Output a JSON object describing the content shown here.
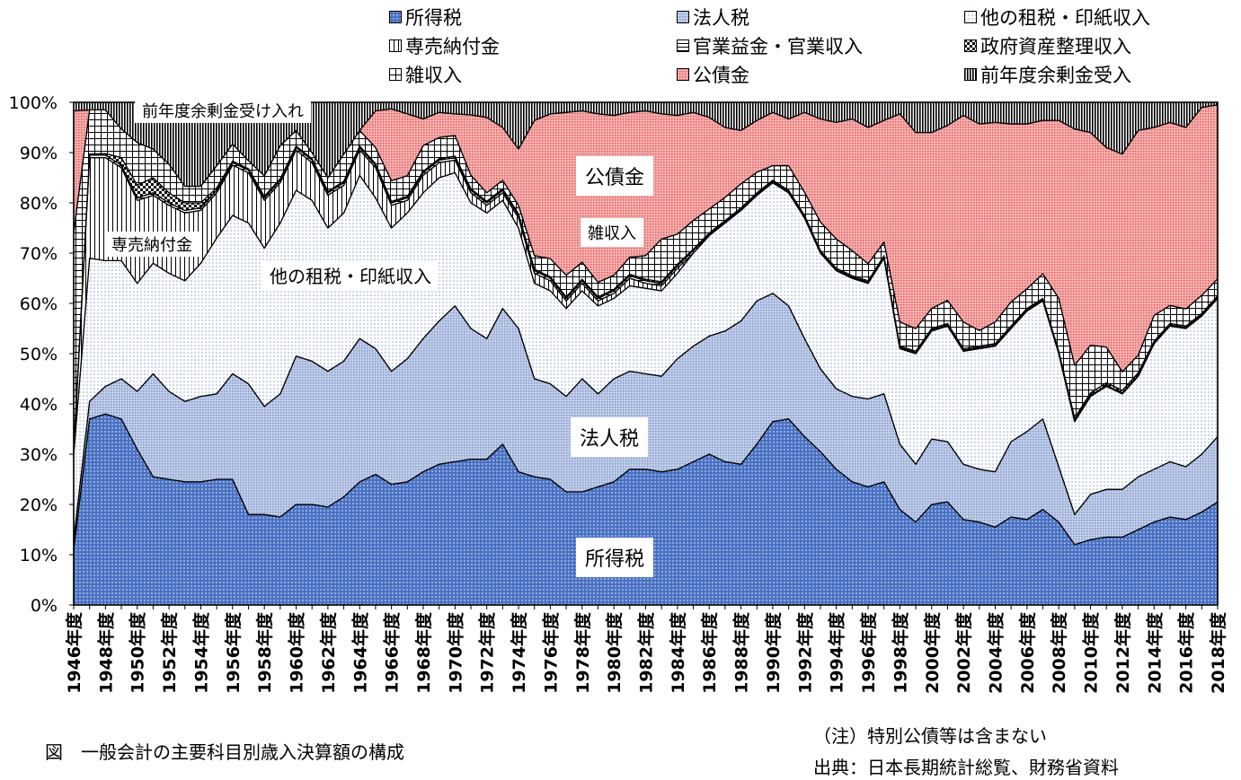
{
  "chart_data": {
    "type": "area",
    "stacked": "percent",
    "title": "図　一般会計の主要科目別歳入決算額の構成",
    "note": "（注）特別公債等は含まない",
    "source": "出典：日本長期統計総覧、財務省資料",
    "ylim": [
      0,
      100
    ],
    "y_tick_labels": [
      "0%",
      "10%",
      "20%",
      "30%",
      "40%",
      "50%",
      "60%",
      "70%",
      "80%",
      "90%",
      "100%"
    ],
    "x_start_year": 1946,
    "x_end_year": 2018,
    "x_tick_labels": [
      "1946年度",
      "1948年度",
      "1950年度",
      "1952年度",
      "1954年度",
      "1956年度",
      "1958年度",
      "1960年度",
      "1962年度",
      "1964年度",
      "1966年度",
      "1968年度",
      "1970年度",
      "1972年度",
      "1974年度",
      "1976年度",
      "1978年度",
      "1980年度",
      "1982年度",
      "1984年度",
      "1986年度",
      "1988年度",
      "1990年度",
      "1992年度",
      "1994年度",
      "1996年度",
      "1998年度",
      "2000年度",
      "2002年度",
      "2004年度",
      "2006年度",
      "2008年度",
      "2010年度",
      "2012年度",
      "2014年度",
      "2016年度",
      "2018年度"
    ],
    "legend_placement": "top",
    "series": [
      {
        "key": "income",
        "name": "所得税",
        "pattern": "p-income",
        "color": "#4A72C4",
        "values": [
          11,
          37,
          38,
          37,
          31,
          25.5,
          25,
          24.5,
          24.5,
          25,
          25,
          18,
          18,
          17.5,
          20,
          20,
          19.5,
          21.5,
          24.5,
          26,
          24,
          24.5,
          26.5,
          28,
          28.5,
          29,
          29,
          32,
          26.5,
          25.5,
          25,
          22.5,
          22.5,
          23.5,
          24.5,
          27,
          27,
          26.5,
          27,
          28.5,
          30,
          28.5,
          28,
          32,
          36.5,
          37,
          33.5,
          30.5,
          27,
          24.5,
          23.5,
          24.5,
          19,
          16.5,
          20,
          20.5,
          17,
          16.5,
          15.5,
          17.5,
          17,
          19,
          16.5,
          12,
          13,
          13.5,
          13.5,
          15,
          16.5,
          17.5,
          17,
          18.5,
          20.5
        ]
      },
      {
        "key": "corp",
        "name": "法人税",
        "pattern": "p-corp",
        "color": "#A9BCE2",
        "values": [
          2,
          3.5,
          5.5,
          8,
          11.5,
          20.5,
          17.5,
          16,
          17,
          17,
          21,
          26,
          21.5,
          24.5,
          29.5,
          28.5,
          27,
          27,
          28.5,
          25,
          22.5,
          24.5,
          26.5,
          28.5,
          31,
          26,
          24,
          27,
          28.5,
          19.5,
          19,
          19,
          22.5,
          18.5,
          20.5,
          19.5,
          19,
          19,
          22,
          23,
          23.5,
          26,
          28.5,
          28.5,
          25.5,
          22.5,
          19.5,
          16.5,
          16,
          17,
          17.5,
          17.5,
          13,
          11.5,
          13,
          12,
          11,
          10.5,
          11,
          15,
          17.5,
          18,
          11,
          6,
          9,
          9.5,
          9.5,
          10.5,
          10.5,
          11,
          10.5,
          11.5,
          13
        ]
      },
      {
        "key": "other",
        "name": "他の租税・印紙収入",
        "pattern": "p-other",
        "color": "#DDE5F4",
        "values": [
          17,
          28.5,
          25,
          23.5,
          21.5,
          22,
          23.5,
          24,
          26.5,
          31,
          31.5,
          32,
          31.5,
          34,
          33,
          32,
          28.5,
          29.5,
          32.5,
          30,
          28.5,
          29,
          29,
          28.5,
          26.5,
          25,
          25,
          21.5,
          20,
          19,
          18.5,
          17.5,
          17.5,
          17.5,
          16,
          17,
          17,
          17,
          17,
          18.5,
          20,
          21.5,
          22,
          21,
          22,
          22.5,
          24,
          23,
          23.5,
          23.5,
          23,
          27,
          19,
          22,
          21.5,
          23,
          22.5,
          24,
          25,
          22.5,
          24,
          23.5,
          22.5,
          18.5,
          19.5,
          20.5,
          19,
          20,
          25,
          27,
          27.5,
          27.5,
          27.5
        ]
      },
      {
        "key": "monopoly",
        "name": "専売納付金",
        "pattern": "p-monopoly",
        "color": "#FFFFFF",
        "values": [
          0.5,
          20,
          20.5,
          18.5,
          16.5,
          13.5,
          13.5,
          13.5,
          10.5,
          9,
          10,
          10,
          9.5,
          8,
          8,
          7.5,
          6.5,
          5.5,
          5,
          6,
          4.5,
          2.5,
          3.5,
          3,
          2.5,
          2,
          1.5,
          1.5,
          2,
          2,
          2,
          1.5,
          1.5,
          1,
          1,
          1.5,
          1,
          1,
          1,
          0,
          0,
          0,
          0,
          0,
          0,
          0,
          0,
          0,
          0,
          0,
          0,
          0,
          0,
          0,
          0,
          0,
          0,
          0,
          0,
          0,
          0,
          0,
          0,
          0,
          0,
          0,
          0,
          0,
          0,
          0,
          0,
          0,
          0
        ]
      },
      {
        "key": "enterprise",
        "name": "官業益金・官業収入",
        "pattern": "p-enterprise",
        "color": "#FFFFFF",
        "values": [
          0.5,
          0.5,
          0.5,
          0.5,
          0.5,
          0.5,
          0.5,
          0.5,
          0.5,
          0.5,
          0.5,
          0.5,
          0.5,
          0.5,
          0.5,
          0.5,
          0.5,
          0.5,
          0.5,
          0.5,
          0.5,
          0.5,
          0.5,
          0.5,
          0.5,
          0.5,
          0.5,
          0.5,
          0.5,
          0.5,
          0.5,
          0.5,
          0.5,
          0.5,
          0.5,
          0.5,
          0.5,
          0.5,
          0.5,
          0.5,
          0.2,
          0.2,
          0.2,
          0.2,
          0.2,
          0.2,
          0.2,
          0.2,
          0.2,
          0.2,
          0.2,
          0.2,
          0.2,
          0.2,
          0.2,
          0.2,
          0.2,
          0.2,
          0.2,
          0.2,
          0.2,
          0.2,
          0.2,
          0.2,
          0.2,
          0.2,
          0.2,
          0.2,
          0.2,
          0.2,
          0.2,
          0.2,
          0.2
        ]
      },
      {
        "key": "asset",
        "name": "政府資産整理収入",
        "pattern": "p-asset",
        "color": "#000000",
        "values": [
          0,
          0.2,
          0.3,
          1.5,
          2.5,
          3,
          2,
          1.5,
          1,
          0.5,
          0.3,
          0.3,
          0.3,
          0.3,
          0.3,
          0.3,
          0.3,
          0.3,
          0.3,
          0.3,
          0.3,
          0.3,
          0.3,
          0.3,
          0.3,
          0.3,
          0.3,
          0.3,
          0.3,
          0.3,
          0.3,
          0.3,
          0.3,
          0.3,
          0.3,
          0.3,
          0.3,
          0.3,
          0.3,
          0.3,
          0.3,
          0.3,
          0.3,
          0.3,
          0.3,
          0.3,
          0.3,
          0.3,
          0.3,
          0.3,
          0.3,
          0.3,
          0.3,
          0.3,
          0.3,
          0.3,
          0.3,
          0.3,
          0.3,
          0.3,
          0.3,
          0.3,
          0.3,
          0.5,
          0.5,
          0.5,
          0.5,
          0.5,
          0.3,
          0.3,
          0.3,
          0.3,
          0.3
        ]
      },
      {
        "key": "misc",
        "name": "雑収入",
        "pattern": "p-misc",
        "color": "#FFFFFF",
        "values": [
          43,
          8.8,
          8.7,
          5.7,
          8.5,
          5.7,
          5.7,
          3.3,
          3.3,
          4.4,
          3.4,
          1.6,
          4.1,
          6.6,
          3.1,
          1.2,
          2.7,
          5.4,
          3.1,
          3.2,
          4.1,
          4.1,
          5.1,
          4.2,
          4.1,
          2.7,
          1.7,
          1.7,
          1.7,
          2.7,
          3.6,
          4.3,
          3.4,
          2.9,
          2.8,
          3.4,
          4.7,
          8.5,
          6,
          5.7,
          4.8,
          4.6,
          4.8,
          4.1,
          2.9,
          4.9,
          4.6,
          5.7,
          5.8,
          5,
          3.4,
          2.7,
          4.8,
          4.5,
          4,
          4.6,
          5.3,
          3.1,
          4.3,
          4.8,
          3.9,
          4.9,
          10.5,
          10.5,
          9.5,
          7.1,
          3.7,
          3.5,
          5.1,
          3.6,
          3.4,
          3.6,
          3.4
        ]
      },
      {
        "key": "bond",
        "name": "公債金",
        "pattern": "p-bond",
        "color": "#F29C9C",
        "values": [
          24.3,
          0,
          0,
          0,
          0,
          0,
          0,
          0,
          0,
          0,
          0,
          0,
          0,
          0,
          0,
          0,
          0,
          0,
          0,
          7.3,
          14.3,
          12.3,
          5.3,
          5,
          4.3,
          12,
          15,
          10.5,
          11.2,
          26.9,
          28.8,
          32.4,
          30.1,
          33.5,
          31.8,
          28.8,
          28.8,
          24.9,
          23.6,
          21.5,
          18.2,
          13.9,
          10.6,
          10.3,
          10.6,
          9.3,
          15.9,
          20.5,
          23.2,
          26.2,
          27.1,
          24.2,
          41.4,
          39,
          35,
          34.8,
          41.1,
          41.1,
          39.7,
          35.4,
          32.8,
          30.5,
          35.4,
          47,
          42.3,
          39.7,
          43.3,
          44.7,
          37.4,
          36.4,
          36.1,
          37.4,
          34.6
        ]
      },
      {
        "key": "surplus",
        "name": "前年度余剰金受入",
        "pattern": "p-surplus",
        "color": "#000000",
        "values": [
          1.7,
          1.5,
          1.5,
          5.3,
          8,
          9.3,
          12.3,
          16.7,
          16.7,
          12.6,
          8.3,
          11.6,
          14.6,
          8.6,
          5.6,
          10,
          15,
          10.3,
          5.6,
          1.7,
          1.3,
          2.3,
          3.3,
          2,
          2.3,
          2.5,
          3,
          5,
          9.3,
          3.6,
          2.3,
          2,
          1.7,
          2.3,
          2.6,
          2,
          1.7,
          2.3,
          2.6,
          2,
          3,
          5,
          5.6,
          3.6,
          2,
          3.3,
          2,
          3.3,
          4,
          3.3,
          5,
          3.6,
          2.3,
          6,
          6,
          4.6,
          2.6,
          4.3,
          4,
          4.3,
          4.3,
          3.6,
          3.6,
          5.3,
          6,
          9,
          10.3,
          5.6,
          5,
          4,
          5,
          1,
          0.5
        ]
      }
    ],
    "legend_order": [
      "income",
      "corp",
      "other",
      "monopoly",
      "enterprise",
      "asset",
      "misc",
      "bond",
      "surplus"
    ],
    "annotations": {
      "surplus": "前年度余剰金受け入れ",
      "monopoly": "専売納付金",
      "other": "他の租税・印紙収入",
      "bond": "公債金",
      "misc": "雑収入",
      "corp": "法人税",
      "income": "所得税"
    }
  }
}
